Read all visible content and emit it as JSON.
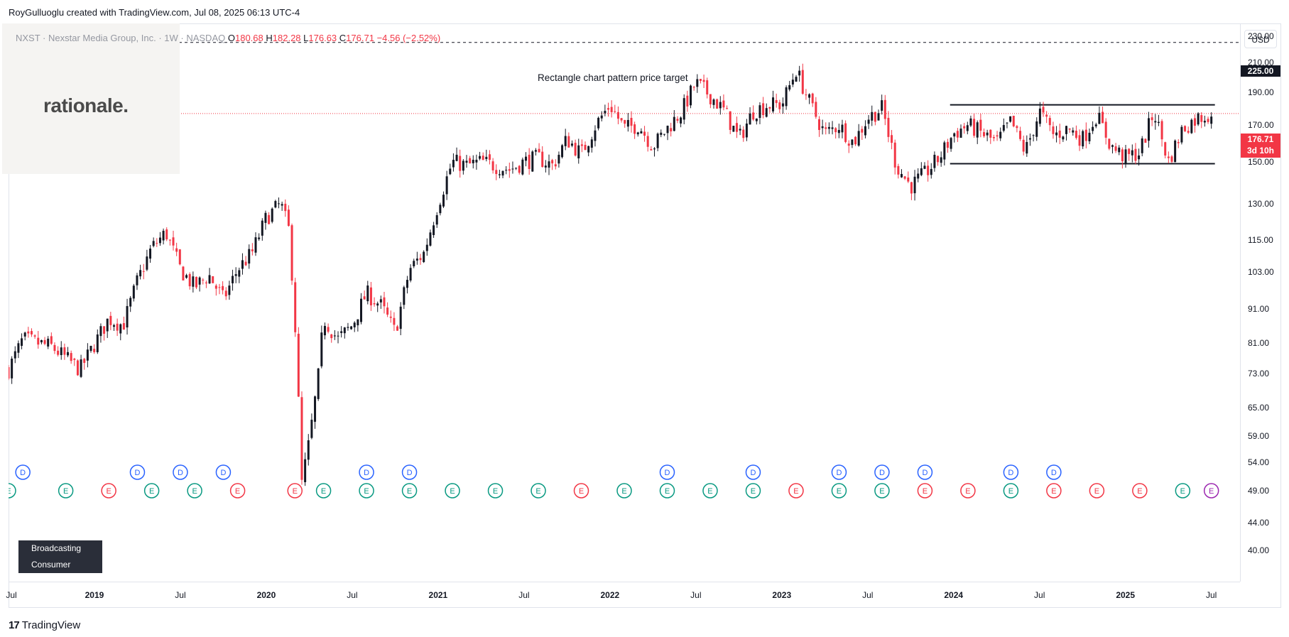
{
  "header": {
    "credit": "RoyGulluoglu created with TradingView.com, Jul 08, 2025 06:13 UTC-4"
  },
  "logo": {
    "text": "rationale."
  },
  "legend": {
    "symbol": "NXST · Nexstar Media Group, Inc. · 1W · NASDAQ",
    "o_label": "O",
    "o": "180.68",
    "h_label": "H",
    "h": "182.28",
    "l_label": "L",
    "l": "176.63",
    "c_label": "C",
    "c": "176.71",
    "change": "−4.56 (−2.52%)"
  },
  "currency": "USD",
  "annotation": "Rectangle chart pattern price target",
  "target_label": "225.00",
  "last_price_label": "176.71",
  "countdown_label": "3d 10h",
  "sector_tag": {
    "line1": "Broadcasting",
    "line2": "Consumer Services"
  },
  "footer": {
    "brand": "TradingView",
    "mark": "17"
  },
  "colors": {
    "up": "#131722",
    "down": "#f23645",
    "dividend": "#2962ff",
    "earnings_beat": "#089981",
    "earnings_miss": "#f23645",
    "split": "#9c27b0"
  },
  "chart_data": {
    "type": "candlestick",
    "title": "NXST · Nexstar Media Group, Inc. · 1W · NASDAQ",
    "scale": "log",
    "ylim": [
      36,
      240
    ],
    "y_ticks": [
      "40.00",
      "44.00",
      "49.00",
      "54.00",
      "59.00",
      "65.00",
      "73.00",
      "81.00",
      "91.00",
      "103.00",
      "115.00",
      "130.00",
      "150.00",
      "170.00",
      "190.00",
      "210.00",
      "230.00"
    ],
    "x_ticks": [
      {
        "date": "2018-07",
        "label": "Jul",
        "year": false
      },
      {
        "date": "2019-01",
        "label": "2019",
        "year": true
      },
      {
        "date": "2019-07",
        "label": "Jul",
        "year": false
      },
      {
        "date": "2020-01",
        "label": "2020",
        "year": true
      },
      {
        "date": "2020-07",
        "label": "Jul",
        "year": false
      },
      {
        "date": "2021-01",
        "label": "2021",
        "year": true
      },
      {
        "date": "2021-07",
        "label": "Jul",
        "year": false
      },
      {
        "date": "2022-01",
        "label": "2022",
        "year": true
      },
      {
        "date": "2022-07",
        "label": "Jul",
        "year": false
      },
      {
        "date": "2023-01",
        "label": "2023",
        "year": true
      },
      {
        "date": "2023-07",
        "label": "Jul",
        "year": false
      },
      {
        "date": "2024-01",
        "label": "2024",
        "year": true
      },
      {
        "date": "2024-07",
        "label": "Jul",
        "year": false
      },
      {
        "date": "2025-01",
        "label": "2025",
        "year": true
      },
      {
        "date": "2025-07",
        "label": "Jul",
        "year": false
      }
    ],
    "x_range": [
      "2018-07",
      "2025-09"
    ],
    "price_path": [
      [
        "2018-07",
        74
      ],
      [
        "2018-08",
        82
      ],
      [
        "2018-10",
        80
      ],
      [
        "2018-12",
        74
      ],
      [
        "2019-02",
        88
      ],
      [
        "2019-03",
        86
      ],
      [
        "2019-04",
        100
      ],
      [
        "2019-05",
        112
      ],
      [
        "2019-06",
        118
      ],
      [
        "2019-07",
        104
      ],
      [
        "2019-08",
        98
      ],
      [
        "2019-09",
        102
      ],
      [
        "2019-10",
        94
      ],
      [
        "2019-11",
        104
      ],
      [
        "2019-12",
        110
      ],
      [
        "2020-01",
        124
      ],
      [
        "2020-02",
        130
      ],
      [
        "2020-02-20",
        118
      ],
      [
        "2020-03-05",
        78
      ],
      [
        "2020-03-15",
        50
      ],
      [
        "2020-04-01",
        58
      ],
      [
        "2020-04-20",
        72
      ],
      [
        "2020-05",
        88
      ],
      [
        "2020-06",
        82
      ],
      [
        "2020-07",
        86
      ],
      [
        "2020-08",
        96
      ],
      [
        "2020-09",
        92
      ],
      [
        "2020-10",
        84
      ],
      [
        "2020-11",
        104
      ],
      [
        "2020-12",
        110
      ],
      [
        "2021-01",
        130
      ],
      [
        "2021-02",
        150
      ],
      [
        "2021-03",
        148
      ],
      [
        "2021-04",
        150
      ],
      [
        "2021-05",
        148
      ],
      [
        "2021-06",
        146
      ],
      [
        "2021-07",
        150
      ],
      [
        "2021-08",
        152
      ],
      [
        "2021-09",
        148
      ],
      [
        "2021-10",
        162
      ],
      [
        "2021-11",
        154
      ],
      [
        "2021-12",
        170
      ],
      [
        "2022-01",
        182
      ],
      [
        "2022-02",
        168
      ],
      [
        "2022-03",
        170
      ],
      [
        "2022-04",
        158
      ],
      [
        "2022-05",
        168
      ],
      [
        "2022-06",
        178
      ],
      [
        "2022-07",
        196
      ],
      [
        "2022-08",
        188
      ],
      [
        "2022-09",
        178
      ],
      [
        "2022-10",
        162
      ],
      [
        "2022-11",
        178
      ],
      [
        "2022-12",
        182
      ],
      [
        "2023-01",
        182
      ],
      [
        "2023-02",
        205
      ],
      [
        "2023-03",
        182
      ],
      [
        "2023-04",
        165
      ],
      [
        "2023-05",
        170
      ],
      [
        "2023-06",
        160
      ],
      [
        "2023-07",
        174
      ],
      [
        "2023-08",
        180
      ],
      [
        "2023-09",
        148
      ],
      [
        "2023-10",
        138
      ],
      [
        "2023-11",
        144
      ],
      [
        "2023-12",
        152
      ],
      [
        "2024-01",
        165
      ],
      [
        "2024-02",
        170
      ],
      [
        "2024-03",
        165
      ],
      [
        "2024-04",
        160
      ],
      [
        "2024-05",
        172
      ],
      [
        "2024-06",
        155
      ],
      [
        "2024-07",
        178
      ],
      [
        "2024-08",
        164
      ],
      [
        "2024-09",
        168
      ],
      [
        "2024-10",
        162
      ],
      [
        "2024-11",
        176
      ],
      [
        "2024-12",
        158
      ],
      [
        "2025-01",
        152
      ],
      [
        "2025-02",
        155
      ],
      [
        "2025-03",
        178
      ],
      [
        "2025-04",
        150
      ],
      [
        "2025-05",
        168
      ],
      [
        "2025-06",
        174
      ],
      [
        "2025-07",
        176.71
      ]
    ],
    "annotations": {
      "target": {
        "value": 225.0,
        "style": "dashed"
      },
      "last_close": {
        "value": 176.71,
        "style": "dotted"
      },
      "rectangle": {
        "top": 182,
        "bottom": 149,
        "start": "2024-01",
        "end": "2025-07"
      }
    },
    "events": [
      {
        "date": "2018-08",
        "type": "D",
        "row": "dividend"
      },
      {
        "date": "2019-04",
        "type": "D",
        "row": "dividend"
      },
      {
        "date": "2019-07",
        "type": "D",
        "row": "dividend"
      },
      {
        "date": "2019-10",
        "type": "D",
        "row": "dividend"
      },
      {
        "date": "2020-08",
        "type": "D",
        "row": "dividend"
      },
      {
        "date": "2020-11",
        "type": "D",
        "row": "dividend"
      },
      {
        "date": "2022-05",
        "type": "D",
        "row": "dividend"
      },
      {
        "date": "2022-11",
        "type": "D",
        "row": "dividend"
      },
      {
        "date": "2023-05",
        "type": "D",
        "row": "dividend"
      },
      {
        "date": "2023-08",
        "type": "D",
        "row": "dividend"
      },
      {
        "date": "2023-11",
        "type": "D",
        "row": "dividend"
      },
      {
        "date": "2024-05",
        "type": "D",
        "row": "dividend"
      },
      {
        "date": "2024-08",
        "type": "D",
        "row": "dividend"
      },
      {
        "date": "2018-07",
        "type": "E",
        "row": "earnings",
        "result": "beat"
      },
      {
        "date": "2018-11",
        "type": "E",
        "row": "earnings",
        "result": "beat"
      },
      {
        "date": "2019-02",
        "type": "E",
        "row": "earnings",
        "result": "miss"
      },
      {
        "date": "2019-05",
        "type": "E",
        "row": "earnings",
        "result": "beat"
      },
      {
        "date": "2019-08",
        "type": "E",
        "row": "earnings",
        "result": "beat"
      },
      {
        "date": "2019-11",
        "type": "E",
        "row": "earnings",
        "result": "miss"
      },
      {
        "date": "2020-03",
        "type": "E",
        "row": "earnings",
        "result": "miss"
      },
      {
        "date": "2020-05",
        "type": "E",
        "row": "earnings",
        "result": "beat"
      },
      {
        "date": "2020-08",
        "type": "E",
        "row": "earnings",
        "result": "beat"
      },
      {
        "date": "2020-11",
        "type": "E",
        "row": "earnings",
        "result": "beat"
      },
      {
        "date": "2021-02",
        "type": "E",
        "row": "earnings",
        "result": "beat"
      },
      {
        "date": "2021-05",
        "type": "E",
        "row": "earnings",
        "result": "beat"
      },
      {
        "date": "2021-08",
        "type": "E",
        "row": "earnings",
        "result": "beat"
      },
      {
        "date": "2021-11",
        "type": "E",
        "row": "earnings",
        "result": "miss"
      },
      {
        "date": "2022-02",
        "type": "E",
        "row": "earnings",
        "result": "beat"
      },
      {
        "date": "2022-05",
        "type": "E",
        "row": "earnings",
        "result": "beat"
      },
      {
        "date": "2022-08",
        "type": "E",
        "row": "earnings",
        "result": "beat"
      },
      {
        "date": "2022-11",
        "type": "E",
        "row": "earnings",
        "result": "beat"
      },
      {
        "date": "2023-02",
        "type": "E",
        "row": "earnings",
        "result": "miss"
      },
      {
        "date": "2023-05",
        "type": "E",
        "row": "earnings",
        "result": "beat"
      },
      {
        "date": "2023-08",
        "type": "E",
        "row": "earnings",
        "result": "beat"
      },
      {
        "date": "2023-11",
        "type": "E",
        "row": "earnings",
        "result": "miss"
      },
      {
        "date": "2024-02",
        "type": "E",
        "row": "earnings",
        "result": "miss"
      },
      {
        "date": "2024-05",
        "type": "E",
        "row": "earnings",
        "result": "beat"
      },
      {
        "date": "2024-08",
        "type": "E",
        "row": "earnings",
        "result": "miss"
      },
      {
        "date": "2024-11",
        "type": "E",
        "row": "earnings",
        "result": "miss"
      },
      {
        "date": "2025-02",
        "type": "E",
        "row": "earnings",
        "result": "miss"
      },
      {
        "date": "2025-05",
        "type": "E",
        "row": "earnings",
        "result": "beat"
      },
      {
        "date": "2025-07",
        "type": "E",
        "row": "earnings",
        "result": "upcoming"
      }
    ]
  }
}
